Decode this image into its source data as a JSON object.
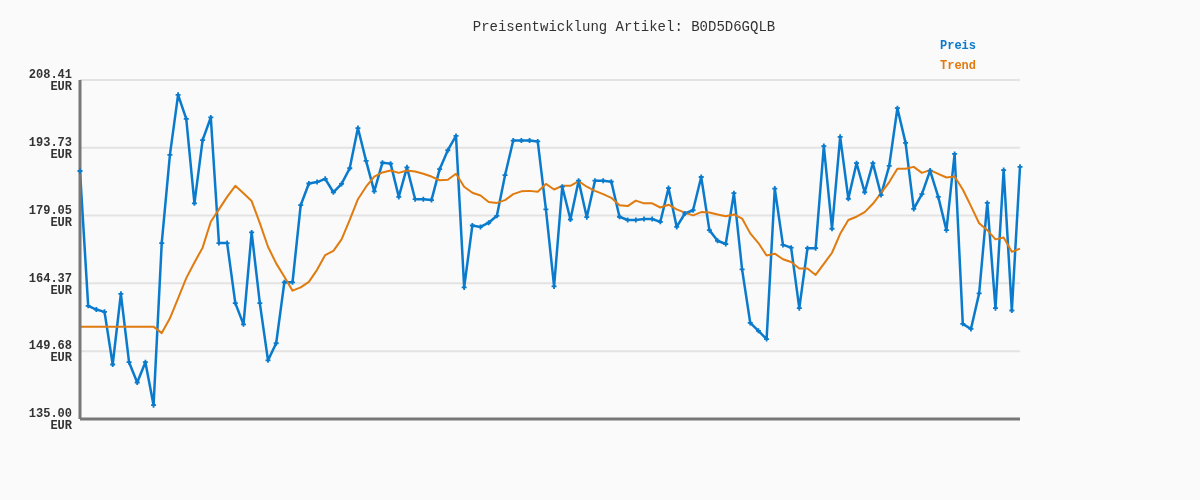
{
  "chart_data": {
    "type": "line",
    "title": "Preisentwicklung Artikel: B0D5D6GQLB",
    "categories": [
      null,
      null,
      null,
      null,
      null,
      null,
      null,
      null,
      null,
      null,
      null,
      null,
      null,
      null,
      null,
      null,
      null,
      null,
      null,
      null,
      null,
      null,
      null,
      null,
      null,
      null,
      null,
      null,
      null,
      null,
      null,
      null,
      null,
      null,
      null,
      null,
      null,
      null,
      null,
      null,
      null,
      null,
      null,
      null,
      null,
      null,
      null,
      null,
      null,
      null,
      null,
      null,
      null,
      null,
      null,
      null,
      null,
      null,
      null,
      null,
      null,
      null,
      null,
      null,
      null,
      null,
      null,
      null,
      null,
      null,
      null,
      null,
      null,
      null,
      null,
      null,
      null,
      null,
      null,
      null,
      null,
      null,
      null,
      null,
      null,
      null,
      null,
      null,
      null,
      null,
      null,
      null,
      null,
      null,
      null,
      null,
      null,
      null,
      null,
      null,
      null,
      null,
      null,
      null,
      null,
      null,
      null,
      null,
      null,
      null,
      null,
      null,
      null,
      null,
      null,
      null
    ],
    "series": [
      {
        "name": "Preis",
        "color": "#0a7bcc",
        "marker": "cross",
        "values": [
          188.7,
          159.5,
          158.7,
          158.2,
          146.8,
          162.1,
          147.3,
          142.9,
          147.3,
          138.0,
          173.1,
          192.2,
          205.2,
          200.0,
          181.7,
          195.4,
          200.3,
          173.1,
          173.1,
          160.1,
          155.5,
          175.4,
          160.1,
          147.7,
          151.4,
          164.6,
          164.6,
          181.3,
          186.0,
          186.3,
          187.0,
          184.1,
          185.9,
          189.3,
          198.0,
          190.9,
          184.3,
          190.5,
          190.3,
          183.1,
          189.5,
          182.6,
          182.6,
          182.4,
          189.1,
          193.2,
          196.3,
          163.5,
          176.9,
          176.6,
          177.5,
          179.0,
          187.8,
          195.3,
          195.3,
          195.3,
          195.1,
          180.4,
          163.7,
          185.3,
          178.2,
          186.6,
          178.7,
          186.6,
          186.6,
          186.4,
          178.8,
          178.1,
          178.1,
          178.3,
          178.3,
          177.7,
          185.0,
          176.6,
          179.5,
          180.2,
          187.4,
          175.9,
          173.6,
          172.9,
          183.9,
          167.4,
          155.8,
          154.1,
          152.3,
          184.9,
          172.7,
          172.1,
          159.0,
          172.0,
          172.0,
          194.1,
          176.2,
          196.1,
          182.7,
          190.4,
          184.1,
          190.4,
          183.5,
          189.8,
          202.3,
          194.8,
          180.5,
          183.7,
          188.8,
          183.1,
          175.9,
          192.4,
          155.6,
          154.5,
          162.2,
          181.8,
          159.0,
          188.9,
          158.5,
          189.6
        ]
      },
      {
        "name": "Trend",
        "color": "#e07b10",
        "marker": "none",
        "values": [
          155.0,
          155.0,
          155.0,
          155.0,
          155.0,
          155.0,
          155.0,
          155.0,
          155.0,
          155.0,
          153.6,
          156.8,
          161.1,
          165.5,
          168.9,
          172.1,
          177.7,
          180.4,
          183.1,
          185.5,
          183.9,
          182.2,
          177.4,
          172.3,
          168.7,
          165.8,
          162.8,
          163.5,
          164.7,
          167.3,
          170.5,
          171.4,
          173.9,
          178.1,
          182.6,
          185.3,
          187.5,
          188.4,
          188.8,
          188.3,
          188.8,
          188.6,
          188.1,
          187.5,
          186.7,
          186.8,
          188.1,
          185.3,
          184.0,
          183.4,
          182.0,
          181.8,
          182.4,
          183.7,
          184.3,
          184.4,
          184.2,
          185.9,
          184.7,
          185.5,
          185.5,
          186.5,
          185.3,
          184.4,
          183.7,
          182.9,
          181.3,
          181.1,
          182.3,
          181.7,
          181.7,
          180.8,
          181.4,
          180.4,
          179.7,
          179.1,
          179.8,
          179.7,
          179.3,
          178.9,
          179.3,
          178.4,
          175.2,
          173.1,
          170.4,
          170.8,
          169.6,
          169.0,
          167.6,
          167.6,
          166.2,
          168.6,
          171.0,
          175.1,
          178.1,
          178.8,
          179.8,
          181.6,
          183.9,
          186.3,
          189.2,
          189.2,
          189.6,
          188.3,
          188.9,
          188.1,
          187.3,
          187.5,
          184.7,
          181.1,
          177.4,
          175.9,
          173.9,
          174.3,
          171.2,
          171.9
        ]
      }
    ],
    "ylim": [
      135,
      208.41
    ],
    "yticks": [
      {
        "value": 135,
        "label": "135.00 EUR"
      },
      {
        "value": 149.68,
        "label": "149.68 EUR"
      },
      {
        "value": 164.37,
        "label": "164.37 EUR"
      },
      {
        "value": 179.05,
        "label": "179.05 EUR"
      },
      {
        "value": 193.73,
        "label": "193.73 EUR"
      },
      {
        "value": 208.41,
        "label": "208.41 EUR"
      }
    ],
    "grid": "y",
    "legend": "top right",
    "tick_labels": "y"
  }
}
